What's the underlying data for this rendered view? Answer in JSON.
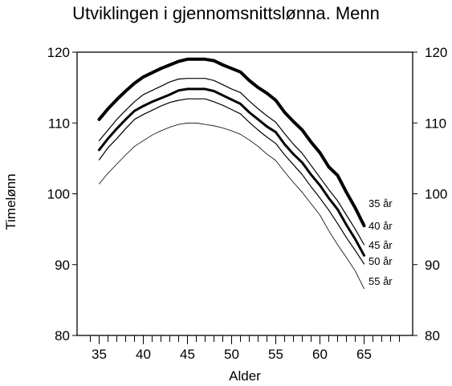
{
  "chart_data": {
    "type": "line",
    "title": "Utviklingen i gjennomsnittslønna. Menn",
    "xlabel": "Alder",
    "ylabel": "Timelønn",
    "xlim": [
      32.5,
      70.5
    ],
    "ylim": [
      80,
      120
    ],
    "x_ticks": [
      35,
      40,
      45,
      50,
      55,
      60,
      65
    ],
    "y_ticks": [
      80,
      90,
      100,
      110,
      120
    ],
    "y_axis_right": true,
    "grid": false,
    "legend": "direct labels at line ends (right)",
    "x": [
      35,
      36,
      37,
      38,
      39,
      40,
      41,
      42,
      43,
      44,
      45,
      46,
      47,
      48,
      49,
      50,
      51,
      52,
      53,
      54,
      55,
      56,
      57,
      58,
      59,
      60,
      61,
      62,
      63,
      64,
      65
    ],
    "series": [
      {
        "name": "35 år",
        "line_width": 4,
        "values": [
          110.5,
          112.0,
          113.3,
          114.5,
          115.6,
          116.5,
          117.1,
          117.7,
          118.2,
          118.7,
          119.0,
          119.0,
          119.0,
          118.8,
          118.2,
          117.7,
          117.2,
          116.0,
          115.0,
          114.2,
          113.2,
          111.5,
          110.2,
          109.0,
          107.3,
          105.8,
          103.8,
          102.6,
          100.2,
          98.0,
          95.5
        ]
      },
      {
        "name": "40 år",
        "line_width": 1.2,
        "values": [
          107.5,
          109.0,
          110.5,
          111.8,
          113.0,
          114.0,
          114.6,
          115.2,
          115.8,
          116.2,
          116.3,
          116.3,
          116.3,
          116.0,
          115.4,
          114.8,
          114.3,
          113.1,
          112.0,
          111.0,
          110.1,
          108.5,
          107.0,
          105.7,
          104.0,
          102.3,
          100.6,
          99.0,
          97.0,
          95.0,
          92.8
        ]
      },
      {
        "name": "45 år",
        "line_width": 3,
        "values": [
          106.2,
          107.8,
          109.2,
          110.5,
          111.7,
          112.4,
          113.0,
          113.5,
          114.0,
          114.6,
          114.8,
          114.8,
          114.8,
          114.5,
          113.9,
          113.3,
          112.7,
          111.5,
          110.5,
          109.5,
          108.7,
          107.0,
          105.6,
          104.4,
          102.7,
          101.2,
          99.4,
          97.8,
          95.6,
          93.6,
          91.3
        ]
      },
      {
        "name": "50 år",
        "line_width": 1.2,
        "values": [
          104.8,
          106.5,
          107.8,
          109.2,
          110.5,
          111.2,
          111.8,
          112.4,
          112.9,
          113.2,
          113.4,
          113.4,
          113.4,
          113.0,
          112.5,
          111.9,
          111.3,
          110.1,
          109.0,
          108.0,
          107.1,
          105.5,
          104.1,
          102.7,
          101.0,
          99.4,
          97.7,
          95.8,
          93.8,
          92.0,
          90.1
        ]
      },
      {
        "name": "55 år",
        "line_width": 0.8,
        "values": [
          101.4,
          102.9,
          104.2,
          105.5,
          106.7,
          107.5,
          108.3,
          108.9,
          109.4,
          109.8,
          110.0,
          110.0,
          109.8,
          109.6,
          109.3,
          108.9,
          108.4,
          107.6,
          106.7,
          105.6,
          104.7,
          103.1,
          101.6,
          100.2,
          98.6,
          97.0,
          94.8,
          92.8,
          91.0,
          89.1,
          86.6
        ]
      }
    ]
  }
}
